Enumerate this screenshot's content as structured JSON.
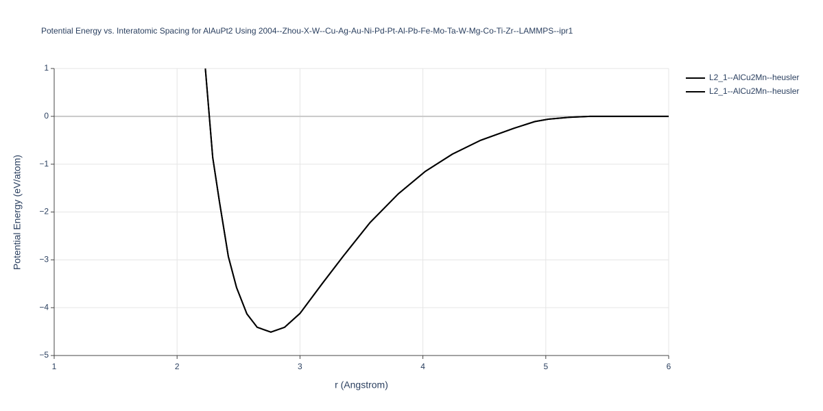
{
  "chart_data": {
    "type": "line",
    "title": "Potential Energy vs. Interatomic Spacing for AlAuPt2 Using 2004--Zhou-X-W--Cu-Ag-Au-Ni-Pd-Pt-Al-Pb-Fe-Mo-Ta-W-Mg-Co-Ti-Zr--LAMMPS--ipr1",
    "x_label": "r (Angstrom)",
    "y_label": "Potential Energy (eV/atom)",
    "x": [
      2.23,
      2.29,
      2.345,
      2.417,
      2.484,
      2.568,
      2.652,
      2.763,
      2.875,
      3.0,
      3.18,
      3.35,
      3.57,
      3.8,
      4.02,
      4.24,
      4.47,
      4.74,
      4.91,
      5.02,
      5.19,
      5.36,
      6.0
    ],
    "series": [
      {
        "name": "L2_1--AlCu2Mn--heusler",
        "color": "#000000",
        "values": [
          1,
          -0.86,
          -1.79,
          -2.93,
          -3.58,
          -4.13,
          -4.41,
          -4.51,
          -4.41,
          -4.12,
          -3.5,
          -2.93,
          -2.22,
          -1.62,
          -1.15,
          -0.79,
          -0.5,
          -0.25,
          -0.11,
          -0.06,
          -0.02,
          0,
          0
        ]
      },
      {
        "name": "L2_1--AlCu2Mn--heusler",
        "color": "#000000",
        "values": [
          1,
          -0.86,
          -1.79,
          -2.93,
          -3.58,
          -4.13,
          -4.41,
          -4.51,
          -4.41,
          -4.12,
          -3.5,
          -2.93,
          -2.22,
          -1.62,
          -1.15,
          -0.79,
          -0.5,
          -0.25,
          -0.11,
          -0.06,
          -0.02,
          0,
          0
        ]
      }
    ],
    "xlim": [
      1,
      6
    ],
    "ylim": [
      -5,
      1
    ],
    "xticks": [
      1,
      2,
      3,
      4,
      5,
      6
    ],
    "yticks": [
      {
        "value": -5,
        "label": "−5"
      },
      {
        "value": -4,
        "label": "−4"
      },
      {
        "value": -3,
        "label": "−3"
      },
      {
        "value": -2,
        "label": "−2"
      },
      {
        "value": -1,
        "label": "−1"
      },
      0,
      1
    ],
    "grid": true,
    "legend": "outside-top-right"
  }
}
